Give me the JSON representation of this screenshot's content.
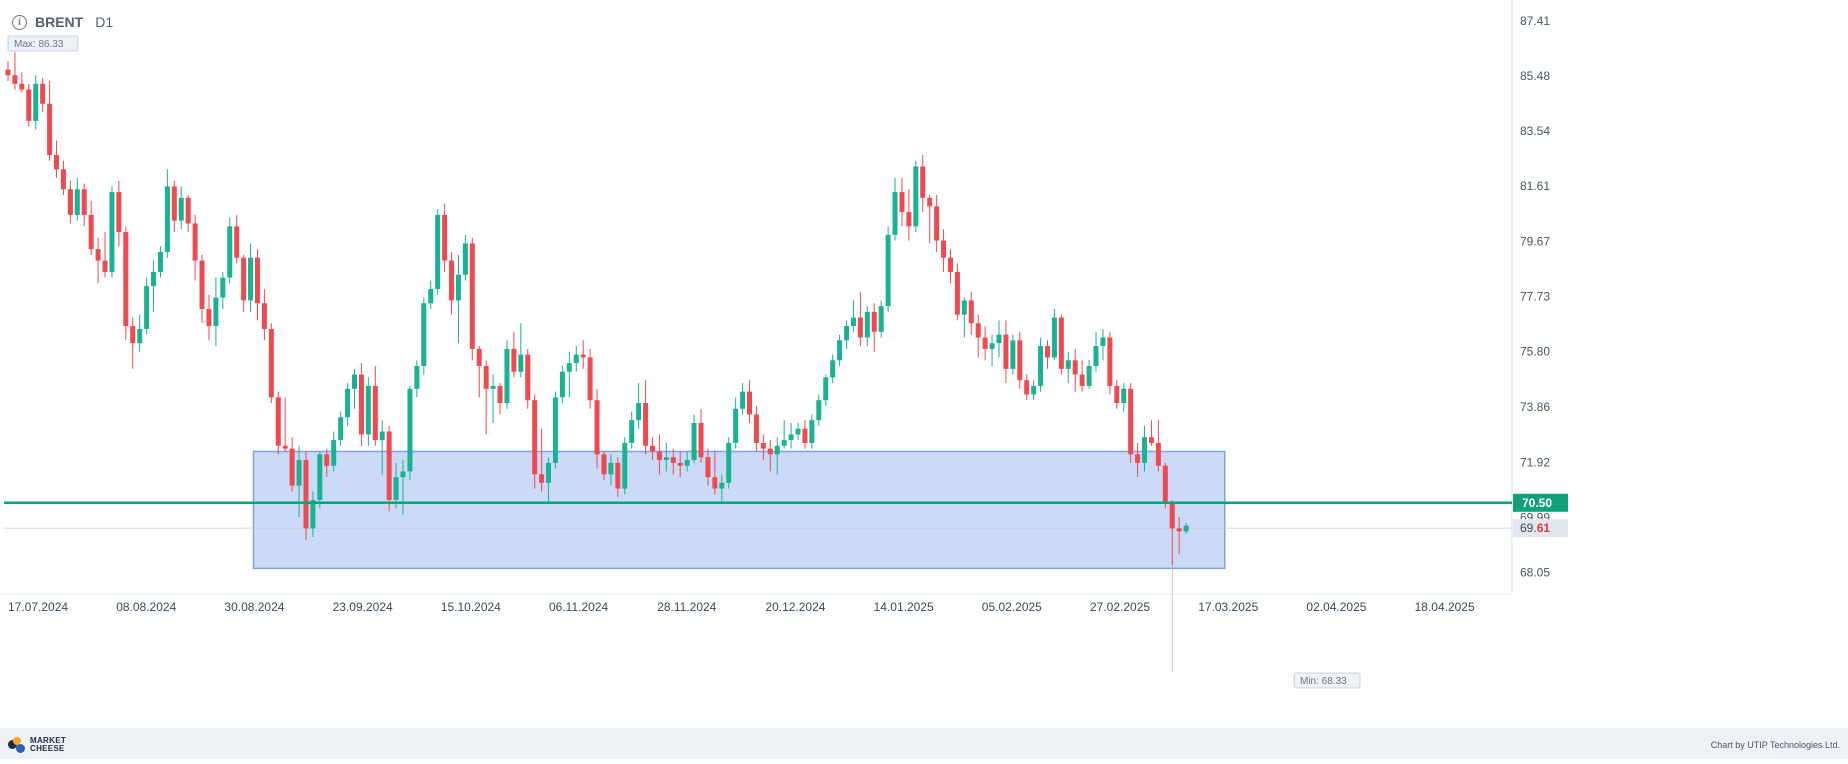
{
  "header": {
    "symbol": "BRENT",
    "timeframe": "D1"
  },
  "footer": {
    "logo_line1": "MARKET",
    "logo_line2": "CHEESE",
    "credit": "Chart by UTIP Technologies Ltd."
  },
  "colors": {
    "bull": "#19b394",
    "bear": "#ee4a4f",
    "zone_fill": "#c8d8f5",
    "zone_stroke": "#7fa3e0",
    "level": "#12a07a"
  },
  "chart_data": {
    "type": "candlestick",
    "title": "",
    "ylim": [
      67.3,
      88.0
    ],
    "y_ticks": [
      "87.41",
      "85.48",
      "83.54",
      "81.61",
      "79.67",
      "77.73",
      "75.80",
      "73.86",
      "71.92",
      "69.99",
      "68.05"
    ],
    "x_ticks": [
      "17.07.2024",
      "08.08.2024",
      "30.08.2024",
      "23.09.2024",
      "15.10.2024",
      "06.11.2024",
      "28.11.2024",
      "20.12.2024",
      "14.01.2025",
      "05.02.2025",
      "27.02.2025",
      "17.03.2025",
      "02.04.2025",
      "18.04.2025"
    ],
    "max_label": "Max: 86.33",
    "min_label": "Min: 68.33",
    "level": {
      "value": 70.5,
      "label": "70.50"
    },
    "current_price": {
      "value": 69.61,
      "label_main": "69.",
      "label_tail": "61"
    },
    "zone": {
      "top": 72.3,
      "bottom": 68.2,
      "from_index": 36,
      "to_index": 175
    },
    "candles": [
      [
        85.7,
        86.0,
        85.3,
        85.5
      ],
      [
        85.5,
        86.3,
        85.0,
        85.2
      ],
      [
        85.2,
        85.6,
        84.9,
        85.0
      ],
      [
        85.0,
        85.2,
        83.7,
        83.9
      ],
      [
        83.9,
        85.5,
        83.6,
        85.2
      ],
      [
        85.2,
        85.4,
        84.2,
        84.5
      ],
      [
        84.5,
        85.3,
        82.5,
        82.7
      ],
      [
        82.7,
        83.2,
        81.9,
        82.2
      ],
      [
        82.2,
        82.5,
        81.3,
        81.5
      ],
      [
        81.5,
        81.8,
        80.3,
        80.6
      ],
      [
        80.6,
        81.9,
        80.4,
        81.5
      ],
      [
        81.5,
        81.7,
        80.2,
        80.6
      ],
      [
        80.6,
        81.1,
        79.2,
        79.4
      ],
      [
        79.4,
        79.8,
        78.2,
        79.0
      ],
      [
        79.0,
        80.0,
        78.4,
        78.6
      ],
      [
        78.6,
        81.6,
        78.4,
        81.4
      ],
      [
        81.4,
        81.8,
        79.5,
        80.0
      ],
      [
        80.0,
        80.2,
        76.2,
        76.7
      ],
      [
        76.7,
        77.0,
        75.2,
        76.1
      ],
      [
        76.1,
        77.1,
        75.8,
        76.6
      ],
      [
        76.6,
        78.4,
        76.4,
        78.1
      ],
      [
        78.1,
        79.0,
        77.2,
        78.6
      ],
      [
        78.6,
        79.5,
        78.4,
        79.3
      ],
      [
        79.3,
        82.2,
        79.1,
        81.6
      ],
      [
        81.6,
        81.8,
        80.0,
        80.4
      ],
      [
        80.4,
        81.6,
        80.1,
        81.2
      ],
      [
        81.2,
        81.3,
        80.0,
        80.3
      ],
      [
        80.3,
        80.6,
        78.3,
        79.0
      ],
      [
        79.0,
        79.2,
        76.8,
        77.3
      ],
      [
        77.3,
        77.8,
        76.2,
        76.7
      ],
      [
        76.7,
        78.4,
        76.0,
        77.7
      ],
      [
        77.7,
        78.6,
        77.3,
        78.4
      ],
      [
        78.4,
        80.5,
        78.2,
        80.2
      ],
      [
        80.2,
        80.6,
        78.9,
        79.1
      ],
      [
        79.1,
        79.2,
        77.2,
        77.6
      ],
      [
        77.6,
        79.6,
        77.2,
        79.1
      ],
      [
        79.1,
        79.4,
        76.9,
        77.5
      ],
      [
        77.5,
        78.0,
        76.2,
        76.6
      ],
      [
        76.6,
        76.8,
        74.0,
        74.2
      ],
      [
        74.2,
        74.4,
        72.2,
        72.5
      ],
      [
        72.5,
        74.2,
        72.3,
        72.4
      ],
      [
        72.4,
        72.8,
        70.9,
        71.1
      ],
      [
        71.1,
        72.5,
        70.0,
        72.0
      ],
      [
        72.0,
        72.3,
        69.2,
        69.6
      ],
      [
        69.6,
        70.9,
        69.3,
        70.6
      ],
      [
        70.6,
        72.3,
        70.3,
        72.2
      ],
      [
        72.2,
        72.4,
        71.4,
        71.8
      ],
      [
        71.8,
        73.0,
        71.6,
        72.7
      ],
      [
        72.7,
        73.7,
        72.5,
        73.5
      ],
      [
        73.5,
        74.7,
        73.2,
        74.5
      ],
      [
        74.5,
        75.2,
        73.8,
        75.0
      ],
      [
        75.0,
        75.4,
        72.5,
        72.9
      ],
      [
        72.9,
        74.9,
        72.5,
        74.6
      ],
      [
        74.6,
        75.3,
        72.5,
        72.7
      ],
      [
        72.7,
        73.4,
        71.5,
        73.0
      ],
      [
        73.0,
        73.2,
        70.2,
        70.6
      ],
      [
        70.6,
        71.9,
        70.3,
        71.4
      ],
      [
        71.4,
        72.0,
        70.1,
        71.6
      ],
      [
        71.6,
        74.6,
        71.3,
        74.5
      ],
      [
        74.5,
        75.5,
        74.2,
        75.3
      ],
      [
        75.3,
        77.7,
        75.0,
        77.5
      ],
      [
        77.5,
        78.3,
        77.3,
        78.0
      ],
      [
        78.0,
        80.8,
        77.8,
        80.6
      ],
      [
        80.6,
        81.0,
        78.6,
        79.0
      ],
      [
        79.0,
        79.3,
        77.1,
        77.6
      ],
      [
        77.6,
        79.2,
        76.1,
        78.5
      ],
      [
        78.5,
        79.9,
        78.3,
        79.6
      ],
      [
        79.6,
        79.8,
        75.5,
        75.9
      ],
      [
        75.9,
        76.0,
        74.2,
        75.3
      ],
      [
        75.3,
        75.5,
        72.9,
        74.5
      ],
      [
        74.5,
        75.0,
        73.3,
        74.6
      ],
      [
        74.6,
        74.7,
        73.6,
        74.0
      ],
      [
        74.0,
        76.2,
        73.8,
        75.9
      ],
      [
        75.9,
        76.5,
        74.9,
        75.1
      ],
      [
        75.1,
        76.8,
        74.9,
        75.7
      ],
      [
        75.7,
        75.9,
        73.8,
        74.1
      ],
      [
        74.1,
        74.3,
        71.0,
        71.5
      ],
      [
        71.5,
        73.1,
        70.9,
        71.2
      ],
      [
        71.2,
        72.1,
        70.5,
        71.9
      ],
      [
        71.9,
        74.4,
        71.7,
        74.2
      ],
      [
        74.2,
        75.3,
        74.0,
        75.1
      ],
      [
        75.1,
        75.8,
        74.2,
        75.4
      ],
      [
        75.4,
        76.0,
        75.1,
        75.7
      ],
      [
        75.7,
        76.2,
        75.2,
        75.6
      ],
      [
        75.6,
        75.9,
        73.8,
        74.1
      ],
      [
        74.1,
        74.5,
        71.7,
        72.2
      ],
      [
        72.2,
        72.3,
        71.3,
        71.5
      ],
      [
        71.5,
        72.2,
        71.1,
        71.9
      ],
      [
        71.9,
        72.1,
        70.7,
        71.0
      ],
      [
        71.0,
        72.8,
        70.8,
        72.6
      ],
      [
        72.6,
        73.7,
        72.4,
        73.4
      ],
      [
        73.4,
        74.7,
        73.1,
        74.0
      ],
      [
        74.0,
        74.8,
        72.2,
        72.5
      ],
      [
        72.5,
        72.8,
        72.0,
        72.3
      ],
      [
        72.3,
        72.9,
        71.5,
        72.0
      ],
      [
        72.0,
        72.6,
        71.6,
        72.1
      ],
      [
        72.1,
        72.4,
        71.5,
        71.9
      ],
      [
        71.9,
        72.3,
        71.4,
        71.8
      ],
      [
        71.8,
        72.3,
        71.6,
        72.0
      ],
      [
        72.0,
        73.6,
        71.9,
        73.3
      ],
      [
        73.3,
        73.8,
        71.9,
        72.1
      ],
      [
        72.1,
        72.4,
        71.1,
        71.4
      ],
      [
        71.4,
        72.3,
        70.8,
        71.0
      ],
      [
        71.0,
        71.5,
        70.5,
        71.2
      ],
      [
        71.2,
        72.8,
        71.0,
        72.6
      ],
      [
        72.6,
        74.2,
        72.4,
        73.8
      ],
      [
        73.8,
        74.7,
        73.6,
        74.4
      ],
      [
        74.4,
        74.8,
        73.3,
        73.6
      ],
      [
        73.6,
        73.9,
        72.3,
        72.6
      ],
      [
        72.6,
        72.9,
        72.0,
        72.4
      ],
      [
        72.4,
        72.7,
        71.6,
        72.2
      ],
      [
        72.2,
        72.8,
        71.5,
        72.5
      ],
      [
        72.5,
        73.4,
        72.4,
        72.7
      ],
      [
        72.7,
        73.3,
        72.4,
        72.9
      ],
      [
        72.9,
        73.3,
        72.7,
        73.1
      ],
      [
        73.1,
        73.4,
        72.4,
        72.6
      ],
      [
        72.6,
        73.6,
        72.4,
        73.4
      ],
      [
        73.4,
        74.3,
        73.2,
        74.1
      ],
      [
        74.1,
        75.0,
        73.9,
        74.9
      ],
      [
        74.9,
        75.7,
        74.7,
        75.5
      ],
      [
        75.5,
        76.4,
        75.3,
        76.2
      ],
      [
        76.2,
        76.9,
        75.9,
        76.7
      ],
      [
        76.7,
        77.6,
        76.5,
        77.0
      ],
      [
        77.0,
        77.9,
        76.0,
        76.3
      ],
      [
        76.3,
        77.4,
        76.0,
        77.2
      ],
      [
        77.2,
        77.5,
        75.8,
        76.5
      ],
      [
        76.5,
        77.6,
        76.3,
        77.4
      ],
      [
        77.4,
        80.2,
        77.2,
        79.9
      ],
      [
        79.9,
        81.9,
        79.7,
        81.4
      ],
      [
        81.4,
        81.9,
        80.2,
        80.7
      ],
      [
        80.7,
        81.5,
        79.7,
        80.2
      ],
      [
        80.2,
        82.5,
        80.0,
        82.3
      ],
      [
        82.3,
        82.7,
        80.7,
        81.2
      ],
      [
        81.2,
        81.3,
        79.6,
        80.9
      ],
      [
        80.9,
        81.3,
        79.3,
        79.7
      ],
      [
        79.7,
        80.1,
        78.6,
        79.1
      ],
      [
        79.1,
        79.4,
        78.2,
        78.6
      ],
      [
        78.6,
        78.9,
        76.9,
        77.1
      ],
      [
        77.1,
        77.7,
        76.3,
        77.6
      ],
      [
        77.6,
        77.9,
        76.4,
        76.8
      ],
      [
        76.8,
        77.1,
        75.6,
        76.3
      ],
      [
        76.3,
        76.7,
        75.5,
        75.9
      ],
      [
        75.9,
        76.4,
        75.3,
        76.1
      ],
      [
        76.1,
        76.9,
        75.6,
        76.4
      ],
      [
        76.4,
        76.9,
        74.7,
        75.2
      ],
      [
        75.2,
        76.4,
        75.0,
        76.2
      ],
      [
        76.2,
        76.5,
        74.5,
        74.8
      ],
      [
        74.8,
        75.0,
        74.1,
        74.3
      ],
      [
        74.3,
        74.8,
        74.1,
        74.6
      ],
      [
        74.6,
        76.3,
        74.4,
        76.0
      ],
      [
        76.0,
        76.2,
        75.2,
        75.6
      ],
      [
        75.6,
        77.3,
        75.5,
        77.0
      ],
      [
        77.0,
        77.1,
        75.0,
        75.2
      ],
      [
        75.2,
        75.8,
        74.7,
        75.5
      ],
      [
        75.5,
        75.9,
        74.4,
        75.0
      ],
      [
        75.0,
        75.5,
        74.4,
        74.6
      ],
      [
        74.6,
        75.5,
        74.5,
        75.3
      ],
      [
        75.3,
        76.5,
        75.1,
        76.0
      ],
      [
        76.0,
        76.6,
        75.5,
        76.3
      ],
      [
        76.3,
        76.5,
        74.3,
        74.6
      ],
      [
        74.6,
        74.8,
        73.8,
        74.0
      ],
      [
        74.0,
        74.7,
        73.7,
        74.5
      ],
      [
        74.5,
        74.7,
        71.9,
        72.2
      ],
      [
        72.2,
        72.6,
        71.4,
        71.9
      ],
      [
        71.9,
        73.2,
        71.6,
        72.8
      ],
      [
        72.8,
        73.4,
        72.5,
        72.6
      ],
      [
        72.6,
        73.4,
        71.6,
        71.8
      ],
      [
        71.8,
        71.9,
        70.3,
        70.5
      ],
      [
        70.5,
        70.6,
        68.3,
        69.6
      ],
      [
        69.6,
        70.0,
        68.7,
        69.5
      ],
      [
        69.5,
        69.8,
        69.4,
        69.7
      ]
    ]
  }
}
